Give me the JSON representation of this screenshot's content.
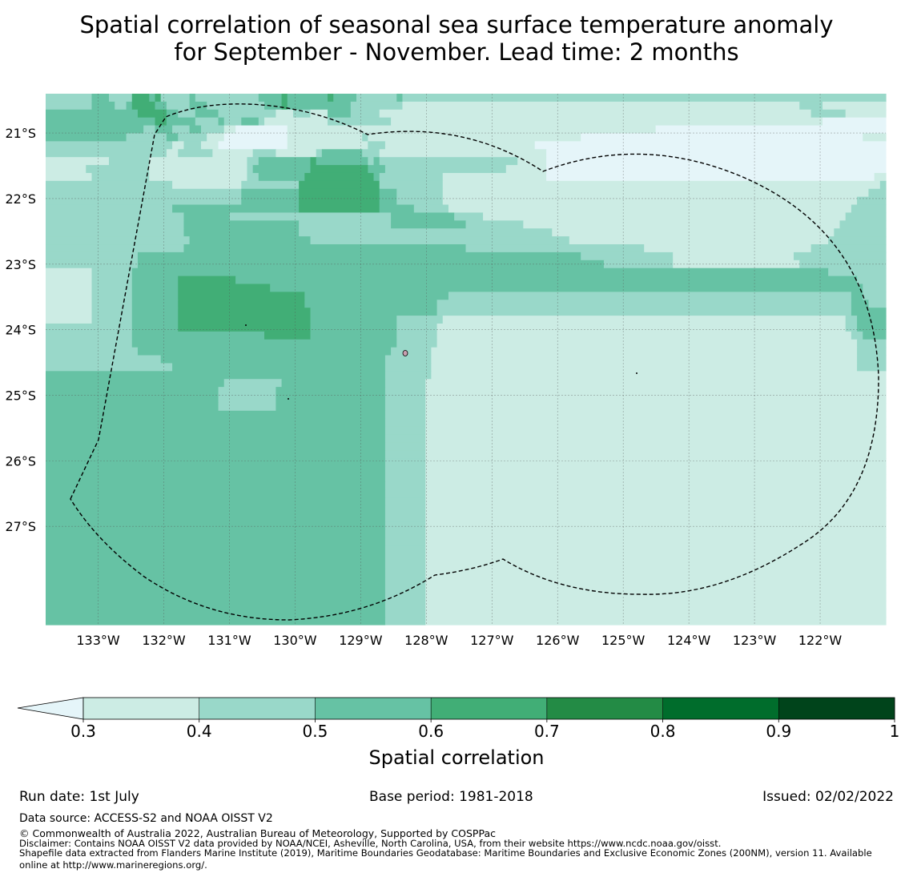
{
  "title": {
    "line1": "Spatial correlation of seasonal sea surface temperature anomaly",
    "line2": "for September - November. Lead time: 2 months"
  },
  "colorbar": {
    "label": "Spatial correlation",
    "tick_labels": [
      "0.3",
      "0.4",
      "0.5",
      "0.6",
      "0.7",
      "0.8",
      "0.9",
      "1"
    ],
    "colors": [
      "#ccece4",
      "#99d8c9",
      "#66c2a4",
      "#41ae76",
      "#238b45",
      "#006d2c",
      "#00441b"
    ],
    "extend_color": "#e5f5f9"
  },
  "footer": {
    "run_date": "Run date: 1st July",
    "base_period": "Base period: 1981-2018",
    "issued": "Issued: 02/02/2022",
    "data_source": "Data source: ACCESS-S2 and NOAA OISST V2",
    "copyright": "© Commonwealth of Australia 2022, Australian Bureau of Meteorology, Supported by COSPPac",
    "disclaimer": "Disclaimer: Contains NOAA OISST V2 data provided by NOAA/NCEI, Asheville, North Carolina, USA, from their website https://www.ncdc.noaa.gov/oisst.",
    "shapefile_line1": "Shapefile data extracted from Flanders Marine Institute (2019), Maritime Boundaries Geodatabase: Maritime Boundaries and Exclusive Economic Zones (200NM), version 11. Available",
    "shapefile_line2": "online at http://www.marineregions.org/."
  },
  "map": {
    "lon_labels": [
      "133°W",
      "132°W",
      "131°W",
      "130°W",
      "129°W",
      "128°W",
      "127°W",
      "126°W",
      "125°W",
      "124°W",
      "123°W",
      "122°W"
    ],
    "lat_labels": [
      "21°S",
      "22°S",
      "23°S",
      "24°S",
      "25°S",
      "26°S",
      "27°S"
    ],
    "lon_range": [
      -133.8,
      -121.0
    ],
    "lat_range": [
      -28.5,
      -20.4
    ],
    "boundary": "dashed EEZ outline (Pitcairn Islands)",
    "grid": true,
    "palette": [
      "#e5f5f9",
      "#ccece4",
      "#99d8c9",
      "#66c2a4",
      "#41ae76"
    ],
    "grid_rows": [
      "22222222333222244434222223222222222223333433333334333322222223222222222222222222222222222222222222222222222222222222222222222222222222222222222222",
      "22222222333322344443322223332222222222333433333333333222222222111111111111111111111111111111111111111111111111111111111111111111111222211111111111",
      "33333333333333334444433222333322222222221112221113333222221111111111111111111111111111111111111111111111111111111111111111111111111112222221111111",
      "33333333333333333334433333222232223332111111111112222222222211111111111111111111111111111111111111111111111111111111111111111111111111100000000000",
      "33333333333333333223332223322221100000000011111111111111111111111111111111111111111111111111111111111111110000000000000000000000000000000000000000",
      "33333333333333222222233222221110000000000011111111111112111111111111111111111111111111111111100000000000000000000000000000000000000000000000001111",
      "22222222222222222222221122211100000000000011111111111111222111111111111111111111111110000000000000000000000000000000000000000000000000000000000000",
      "22222222222222222222211222222111111122221111111233333332221111111111111111111111111111100000000000000000000000000000000000000000000000000000000000",
      "11111111111222222211111111111111111223333333334333333333232222222222222222222222221111100000000000000000000000000000000000000000000000000000000000",
      "11111112222222222211111111111111111233333333334444444444333222222222222222222222111111100000000000000000000000000000000000000000000000000000000000",
      "11111111222222222211111111111111111223333333344444444444432222222222211111111111111111100000000000000000000000000000000000000000000000000000000011",
      "22222222222222222222221111111111112222222222444444444444442222222222211111111111111111111111111111111111111111111111111111111111111111111111111112",
      "22222222222222222222222222222222223333333333444444444444443332222222211111111111111111111111111111111111111111111111111111111111111111111111111222",
      "22222222222222222222222222222222223333333333444444444444443332222222211111111111111111111111111111111111111111111111111111111111111111111111122222",
      "22222222222222222222223333333333333333333333444444444444443333332222221111111111111111111111111111111111111111111111111111111111111111111111222222",
      "22222222222222222222222233333333222222222222222222222222222233333333333222221111111111111111111111111111111111111111111111111111111111111112222222",
      "22222222222222222222222233333333333333333333222222222222222233333333333332222222222111111111111111111111111111111111111111111111111111111122222222",
      "22222222222222222222222233333333333333333333222222222222222222222222222222222222222222221111111111111111111111111111111111111111111111111222222222",
      "22222222222222222222222223333333333333333333332222222222222222222222222222222222222222222221111111111111111111111111111111111111111111112222222222",
      "22222222222222222222222233333333333333333333333333333333333333333333333332222222222222222222222222222222111111111111111111111111111112222222222222",
      "22222222222222223333333333333333333333333333333333333333333333333333333333333333333333333333322222222222222221111111111111111111112222222222222222",
      "22222222222222223333333333333333333333333333333333333333333333333333333333333333333333333333333332222222222221111111111111111111111222222222222222",
      "11111111222222233333333333333333333333333333333333333333333333333333333333333333333333333333333333333333333333333333333333333333333333332222222222",
      "11111111222222233333333444444444433333333333333333333333333333333333333333333333333333333333333333333333333333333333333333333333333333333333322222",
      "11111111222222233333333444444444444444433333333333333333333333333333333333333333333333333333333333333333333333333333333333333333333333333333332222",
      "11111111222222233333333444444444444444444444433333333333333333333333332222222222222222222222222222222222222222222222222222222222222222222222332222",
      "11111111222222233333333444444444444444444444433333333333333333333333222222222222222222222222222222222222222222222222222222222222222222222222333222",
      "11111111222222233333333444444444444444444444443333333333333333333333222222222222222222222222222222222222222222222222222222222222222222222222333333",
      "11111111222222233333333444444444444444444444443333333333333332222222211111111111111111111111111111111111111111111111111111111111111111111112233333",
      "22222222222222233333333444444444444444444444443333333333333332222222111111111111111111111111111111111111111111111111111111111111111111111112233333",
      "22222222222222233333333333333333333333444444443333333333333332222222111111111111111111111111111111111111111111111111111111111111111111111111223333",
      "22222222222222233333333333333333333333333333333333333333333332222222111111111111111111111111111111111111111111111111111111111111111111111111122222",
      "22222222222222223333333333333333333333333333333333333333333322222221111111111111111111111111111111111111111111111111111111111111111111111111122222",
      "22222222222222222222333333333333333333333333333333333333333222222221111111111111111111111111111111111111111111111111111111111111111111111111122222",
      "22222222222222222222223333333333333333333333333333333333333222222221111111111111111111111111111111111111111111111111111111111111111111111111122222",
      "33333333333333333333333333333333333333333333333333333333333222222221111111111111111111111111111111111111111111111111111111111111111111111111111111",
      "33333333333333333333333333333332222222222333333333333333333222222211111111111111111111111111111111111111111111111111111111111111111111111111111111",
      "33333333333333333333333333333322222222223333333333333333333222222211111111111111111111111111111111111111111111111111111111111111111111111111111111",
      "33333333333333333333333333333322222222223333333333333333333222222211111111111111111111111111111111111111111111111111111111111111111111111111111111",
      "33333333333333333333333333333322222222223333333333333333333222222211111111111111111111111111111111111111111111111111111111111111111111111111111111",
      "33333333333333333333333333333333333333333333333333333333333222222211111111111111111111111111111111111111111111111111111111111111111111111111111111",
      "33333333333333333333333333333333333333333333333333333333333222222211111111111111111111111111111111111111111111111111111111111111111111111111111111",
      "33333333333333333333333333333333333333333333333333333333333222222211111111111111111111111111111111111111111111111111111111111111111111111111111111",
      "33333333333333333333333333333333333333333333333333333333333222222211111111111111111111111111111111111111111111111111111111111111111111111111111111",
      "33333333333333333333333333333333333333333333333333333333333222222211111111111111111111111111111111111111111111111111111111111111111111111111111111",
      "33333333333333333333333333333333333333333333333333333333333222222211111111111111111111111111111111111111111111111111111111111111111111111111111111",
      "33333333333333333333333333333333333333333333333333333333333222222211111111111111111111111111111111111111111111111111111111111111111111111111111111",
      "33333333333333333333333333333333333333333333333333333333333222222211111111111111111111111111111111111111111111111111111111111111111111111111111111",
      "33333333333333333333333333333333333333333333333333333333333222222211111111111111111111111111111111111111111111111111111111111111111111111111111111",
      "33333333333333333333333333333333333333333333333333333333333222222211111111111111111111111111111111111111111111111111111111111111111111111111111111",
      "33333333333333333333333333333333333333333333333333333333333222222211111111111111111111111111111111111111111111111111111111111111111111111111111111",
      "33333333333333333333333333333333333333333333333333333333333222222211111111111111111111111111111111111111111111111111111111111111111111111111111111",
      "33333333333333333333333333333333333333333333333333333333333222222211111111111111111111111111111111111111111111111111111111111111111111111111111111",
      "33333333333333333333333333333333333333333333333333333333333222222211111111111111111111111111111111111111111111111111111111111111111111111111111111",
      "33333333333333333333333333333333333333333333333333333333333222222211111111111111111111111111111111111111111111111111111111111111111111111111111111",
      "33333333333333333333333333333333333333333333333333333333333222222211111111111111111111111111111111111111111111111111111111111111111111111111111111",
      "33333333333333333333333333333333333333333333333333333333333222222211111111111111111111111111111111111111111111111111111111111111111111111111111111",
      "33333333333333333333333333333333333333333333333333333333333222222211111111111111111111111111111111111111111111111111111111111111111111111111111111",
      "33333333333333333333333333333333333333333333333333333333333222222211111111111111111111111111111111111111111111111111111111111111111111111111111111",
      "33333333333333333333333333333333333333333333333333333333333222222211111111111111111111111111111111111111111111111111111111111111111111111111111111",
      "33333333333333333333333333333333333333333333333333333333333222222211111111111111111111111111111111111111111111111111111111111111111111111111111111",
      "33333333333333333333333333333333333333333333333333333333333222222211111111111111111111111111111111111111111111111111111111111111111111111111111111",
      "33333333333333333333333333333333333333333333333333333333333222222211111111111111111111111111111111111111111111111111111111111111111111111111111111",
      "33333333333333333333333333333333333333333333333333333333333222222211111111111111111111111111111111111111111111111111111111111111111111111111111111",
      "33333333333333333333333333333333333333333333333333333333333222222211111111111111111111111111111111111111111111111111111111111111111111111111111111",
      "33333333333333333333333333333333333333333333333333333333333222222211111111111111111111111111111111111111111111111111111111111111111111111111111111",
      "33333333333333333333333333333333333333333333333333333333333222222211111111111111111111111111111111111111111111111111111111111111111111111111111111"
    ]
  }
}
